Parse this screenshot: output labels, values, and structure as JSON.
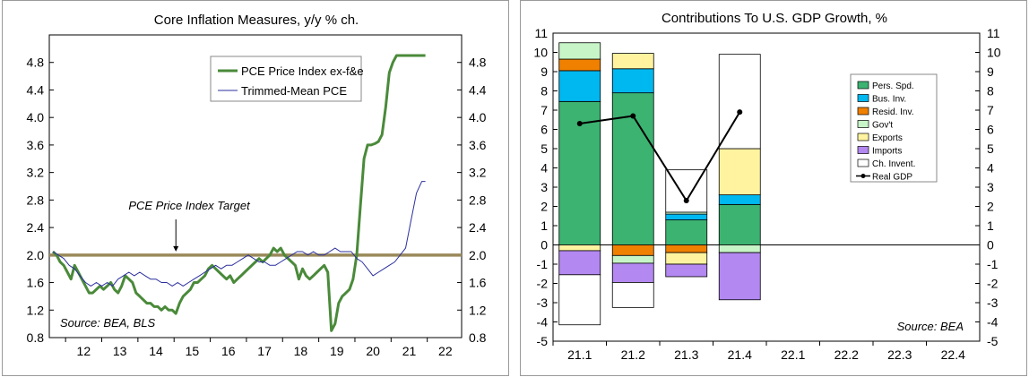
{
  "chart_data": [
    {
      "type": "line",
      "title": "Core Inflation Measures, y/y % ch.",
      "xlabel": "",
      "ylabel": "",
      "xlim": [
        2011.55,
        2022.95
      ],
      "ylim": [
        0.8,
        5.2
      ],
      "x_ticks": [
        "12",
        "13",
        "14",
        "15",
        "16",
        "17",
        "18",
        "19",
        "20",
        "21",
        "22"
      ],
      "y_ticks": [
        "0.8",
        "1.2",
        "1.6",
        "2.0",
        "2.4",
        "2.8",
        "3.2",
        "3.6",
        "4.0",
        "4.4",
        "4.8"
      ],
      "target": {
        "label": "PCE Price Index Target",
        "value": 2.0,
        "color": "#9a8a5a"
      },
      "source": "Source: BEA, BLS",
      "legend_position": "top-right",
      "series": [
        {
          "name": "PCE Price Index ex-f&e",
          "color": "#4a8a3a",
          "x": [
            2011.65,
            2011.75,
            2011.85,
            2011.95,
            2012.05,
            2012.15,
            2012.25,
            2012.35,
            2012.45,
            2012.55,
            2012.65,
            2012.75,
            2012.85,
            2012.95,
            2013.05,
            2013.15,
            2013.25,
            2013.35,
            2013.45,
            2013.55,
            2013.65,
            2013.75,
            2013.85,
            2013.95,
            2014.05,
            2014.15,
            2014.25,
            2014.35,
            2014.45,
            2014.55,
            2014.65,
            2014.75,
            2014.85,
            2014.95,
            2015.05,
            2015.15,
            2015.25,
            2015.35,
            2015.45,
            2015.55,
            2015.65,
            2015.75,
            2015.85,
            2015.95,
            2016.05,
            2016.15,
            2016.25,
            2016.35,
            2016.45,
            2016.55,
            2016.65,
            2016.75,
            2016.85,
            2016.95,
            2017.05,
            2017.15,
            2017.25,
            2017.35,
            2017.45,
            2017.55,
            2017.65,
            2017.75,
            2017.85,
            2017.95,
            2018.05,
            2018.15,
            2018.25,
            2018.35,
            2018.45,
            2018.55,
            2018.65,
            2018.75,
            2018.85,
            2018.95,
            2019.05,
            2019.15,
            2019.25,
            2019.35,
            2019.45,
            2019.55,
            2019.65,
            2019.75,
            2019.85,
            2019.95,
            2020.05,
            2020.15,
            2020.25,
            2020.35,
            2020.45,
            2020.55,
            2020.65,
            2020.75,
            2020.85,
            2020.95,
            2021.05,
            2021.15,
            2021.25,
            2021.35,
            2021.45,
            2021.55,
            2021.65,
            2021.75,
            2021.85,
            2021.95
          ],
          "y": [
            2.05,
            2.0,
            1.9,
            1.85,
            1.75,
            1.65,
            1.85,
            1.75,
            1.65,
            1.55,
            1.45,
            1.45,
            1.5,
            1.55,
            1.5,
            1.55,
            1.6,
            1.5,
            1.45,
            1.55,
            1.7,
            1.65,
            1.6,
            1.45,
            1.4,
            1.35,
            1.3,
            1.3,
            1.25,
            1.25,
            1.2,
            1.25,
            1.2,
            1.2,
            1.15,
            1.3,
            1.4,
            1.45,
            1.5,
            1.6,
            1.6,
            1.65,
            1.7,
            1.8,
            1.85,
            1.8,
            1.75,
            1.7,
            1.65,
            1.7,
            1.6,
            1.65,
            1.7,
            1.75,
            1.8,
            1.85,
            1.9,
            1.95,
            1.9,
            1.95,
            2.0,
            2.1,
            2.05,
            2.1,
            2.0,
            1.95,
            1.9,
            1.85,
            1.65,
            1.8,
            1.7,
            1.65,
            1.7,
            1.75,
            1.8,
            1.85,
            1.75,
            0.9,
            1.0,
            1.3,
            1.4,
            1.45,
            1.5,
            1.65,
            2.0,
            2.7,
            3.4,
            3.6,
            3.6,
            3.62,
            3.65,
            3.75,
            4.15,
            4.65,
            4.8,
            4.9,
            4.9,
            4.9,
            4.9,
            4.9,
            4.9,
            4.9,
            4.9,
            4.9
          ]
        },
        {
          "name": "Trimmed-Mean PCE",
          "color": "#2b2f9e",
          "x": [
            2011.65,
            2011.8,
            2011.95,
            2012.1,
            2012.25,
            2012.4,
            2012.55,
            2012.7,
            2012.85,
            2013.0,
            2013.15,
            2013.3,
            2013.45,
            2013.6,
            2013.75,
            2013.9,
            2014.05,
            2014.2,
            2014.35,
            2014.5,
            2014.65,
            2014.8,
            2014.95,
            2015.1,
            2015.25,
            2015.4,
            2015.55,
            2015.7,
            2015.85,
            2016.0,
            2016.15,
            2016.3,
            2016.45,
            2016.6,
            2016.75,
            2016.9,
            2017.05,
            2017.2,
            2017.35,
            2017.5,
            2017.65,
            2017.8,
            2017.95,
            2018.1,
            2018.25,
            2018.4,
            2018.55,
            2018.7,
            2018.85,
            2019.0,
            2019.15,
            2019.3,
            2019.45,
            2019.6,
            2019.75,
            2019.9,
            2020.05,
            2020.2,
            2020.35,
            2020.5,
            2020.65,
            2020.8,
            2020.95,
            2021.1,
            2021.25,
            2021.4,
            2021.55,
            2021.7,
            2021.85,
            2021.95
          ],
          "y": [
            2.05,
            2.0,
            1.95,
            1.85,
            1.8,
            1.7,
            1.6,
            1.55,
            1.6,
            1.55,
            1.6,
            1.55,
            1.65,
            1.7,
            1.75,
            1.7,
            1.75,
            1.7,
            1.65,
            1.65,
            1.6,
            1.6,
            1.55,
            1.6,
            1.55,
            1.6,
            1.65,
            1.7,
            1.75,
            1.8,
            1.85,
            1.8,
            1.85,
            1.85,
            1.9,
            1.95,
            2.0,
            1.95,
            1.9,
            1.9,
            1.85,
            1.85,
            1.9,
            1.95,
            2.0,
            2.05,
            2.05,
            2.0,
            2.05,
            2.0,
            2.0,
            2.05,
            2.1,
            2.05,
            2.05,
            2.05,
            1.95,
            1.9,
            1.8,
            1.7,
            1.75,
            1.8,
            1.85,
            1.9,
            2.0,
            2.1,
            2.5,
            2.9,
            3.07,
            3.07
          ]
        }
      ]
    },
    {
      "type": "bar",
      "title": "Contributions To U.S. GDP Growth, %",
      "xlabel": "",
      "ylabel": "",
      "ylim": [
        -5,
        11
      ],
      "y_ticks": [
        "-5",
        "-4",
        "-3",
        "-2",
        "-1",
        "0",
        "1",
        "2",
        "3",
        "4",
        "5",
        "6",
        "7",
        "8",
        "9",
        "10",
        "11"
      ],
      "categories": [
        "21.1",
        "21.2",
        "21.3",
        "21.4",
        "22.1",
        "22.2",
        "22.3",
        "22.4"
      ],
      "source": "Source: BEA",
      "legend_position": "right",
      "stacked": true,
      "series": [
        {
          "name": "Pers. Spd.",
          "color": "#3cb371",
          "values": [
            7.45,
            7.9,
            1.3,
            2.1,
            null,
            null,
            null,
            null
          ]
        },
        {
          "name": "Bus. Inv.",
          "color": "#00b8f0",
          "values": [
            1.6,
            1.25,
            0.3,
            0.5,
            null,
            null,
            null,
            null
          ]
        },
        {
          "name": "Resid. Inv.",
          "color": "#f08000",
          "values": [
            0.6,
            -0.55,
            -0.4,
            0.0,
            null,
            null,
            null,
            null
          ]
        },
        {
          "name": "Gov't",
          "color": "#c8f5c8",
          "values": [
            0.85,
            -0.4,
            0.1,
            -0.4,
            null,
            null,
            null,
            null
          ]
        },
        {
          "name": "Exports",
          "color": "#fff3a0",
          "values": [
            -0.3,
            0.8,
            -0.6,
            2.4,
            null,
            null,
            null,
            null
          ]
        },
        {
          "name": "Imports",
          "color": "#b388f0",
          "values": [
            -1.25,
            -1.0,
            -0.65,
            -2.45,
            null,
            null,
            null,
            null
          ]
        },
        {
          "name": "Ch. Invent.",
          "color": "#ffffff",
          "values": [
            -2.6,
            -1.3,
            2.2,
            4.9,
            null,
            null,
            null,
            null
          ]
        }
      ],
      "line_series": {
        "name": "Real GDP",
        "color": "#000000",
        "values": [
          6.3,
          6.7,
          2.3,
          6.9,
          null,
          null,
          null,
          null
        ]
      }
    }
  ]
}
